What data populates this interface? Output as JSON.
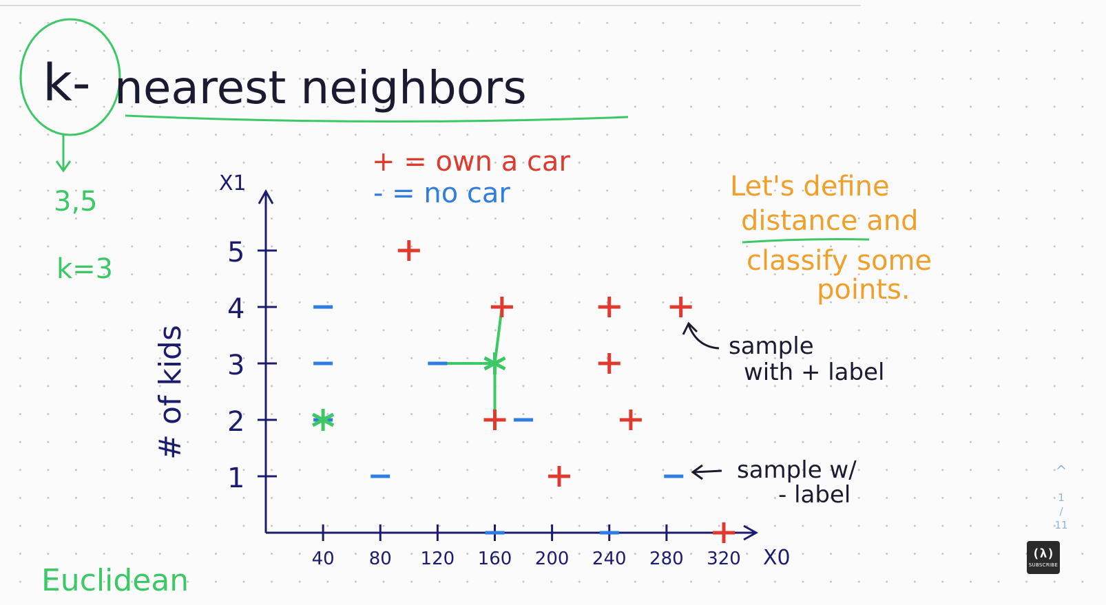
{
  "page": {
    "title": "k-nearest neighbors",
    "k_circle_word": "k-",
    "title_rest": "nearest neighbors",
    "arrow_values": "3,5",
    "k_value": "k=3",
    "legend_plus": "+ = own a car",
    "legend_minus": "- = no car",
    "annotation_orange": [
      "Let's define",
      "distance and",
      "classify some",
      "points."
    ],
    "annotation_plus": [
      "sample",
      "with + label"
    ],
    "annotation_minus": [
      "sample w/",
      "- label"
    ],
    "bottom_word": "Euclidean"
  },
  "ui": {
    "slide_up": "^",
    "slide_current": "1",
    "slide_sep": "/",
    "slide_total": "11",
    "subscribe_glyph": "(λ)",
    "subscribe_label": "SUBSCRIBE"
  },
  "colors": {
    "plus": "#e03a2f",
    "minus": "#2f7de0",
    "green": "#3cc864",
    "orange": "#f0a02a",
    "axis": "#1c1c6e",
    "ink": "#1a1a30"
  },
  "chart_data": {
    "type": "scatter",
    "xlabel": "X0",
    "ylabel": "# of kids",
    "y_axis_name": "X1",
    "x_ticks": [
      40,
      80,
      120,
      160,
      200,
      240,
      280,
      320
    ],
    "y_ticks": [
      1,
      2,
      3,
      4,
      5
    ],
    "xlim": [
      0,
      320
    ],
    "ylim": [
      0,
      5.8
    ],
    "series": [
      {
        "name": "+ = own a car",
        "marker": "plus",
        "points": [
          [
            100,
            5
          ],
          [
            165,
            4
          ],
          [
            240,
            4
          ],
          [
            290,
            4
          ],
          [
            240,
            3
          ],
          [
            160,
            2
          ],
          [
            255,
            2
          ],
          [
            205,
            1
          ],
          [
            320,
            0
          ]
        ]
      },
      {
        "name": "- = no car",
        "marker": "minus",
        "points": [
          [
            40,
            4
          ],
          [
            40,
            3
          ],
          [
            40,
            2
          ],
          [
            80,
            1
          ],
          [
            285,
            1
          ],
          [
            120,
            3
          ],
          [
            180,
            2
          ],
          [
            160,
            0
          ],
          [
            240,
            0
          ]
        ]
      }
    ],
    "query_points": [
      [
        40,
        2
      ],
      [
        160,
        3
      ]
    ],
    "neighbor_links": [
      [
        [
          160,
          3
        ],
        [
          125,
          3
        ]
      ],
      [
        [
          160,
          3
        ],
        [
          165,
          4
        ]
      ],
      [
        [
          160,
          3
        ],
        [
          160,
          2
        ]
      ]
    ]
  }
}
